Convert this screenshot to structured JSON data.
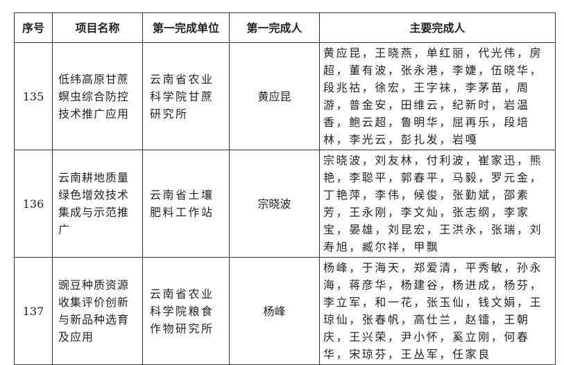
{
  "headers": [
    "序号",
    "项目名称",
    "第一完成单位",
    "第一完成人",
    "主要完成人"
  ],
  "rows": [
    {
      "no": "135",
      "project": "低纬高原甘蔗螟虫综合防控技术推广应用",
      "unit": "云南省农业科学院甘蔗研究所",
      "leader": "黄应昆",
      "members": "黄应昆，王晓燕，单红丽，代光伟，房超，董有波，张永港，李婕，伍晓华，段兆祜，徐宏，王字袜，李茅苗，周游，普金安，田维云，纪新时，岩温香，鲍云超，鲁明华，屈再乐，段培林，李光云，彭扎发，岩嘎"
    },
    {
      "no": "136",
      "project": "云南耕地质量绿色增效技术集成与示范推广",
      "unit": "云南省土壤肥料工作站",
      "leader": "宗晓波",
      "members": "宗晓波，刘友林，付利波，崔家迅，熊艳，李聪平，郭春平，马毅，罗元金，丁艳萍，李伟，候俊，张勤斌，邵素芳，王永刚，李文灿，张志纲，李家宝，晏雄，刘昆宏，王洪永，张瑞，刘寿旭，臧尔祥，甲飘"
    },
    {
      "no": "137",
      "project": "豌豆种质资源收集评价创新与新品种选育及应用",
      "unit": "云南省农业科学院粮食作物研究所",
      "leader": "杨峰",
      "members": "杨峰，于海天，郑爱清，平秀敏，孙永海，蒋彦华，杨建谷，杨进成，杨芬，李立军，和一花，张玉仙，钱文娟，王琼仙，张春帆，高仕兰，赵镭，王朝庆，王兴荣，尹小怀，奚立刚，何春华，宋琼芬，王丛军，任家良"
    }
  ]
}
